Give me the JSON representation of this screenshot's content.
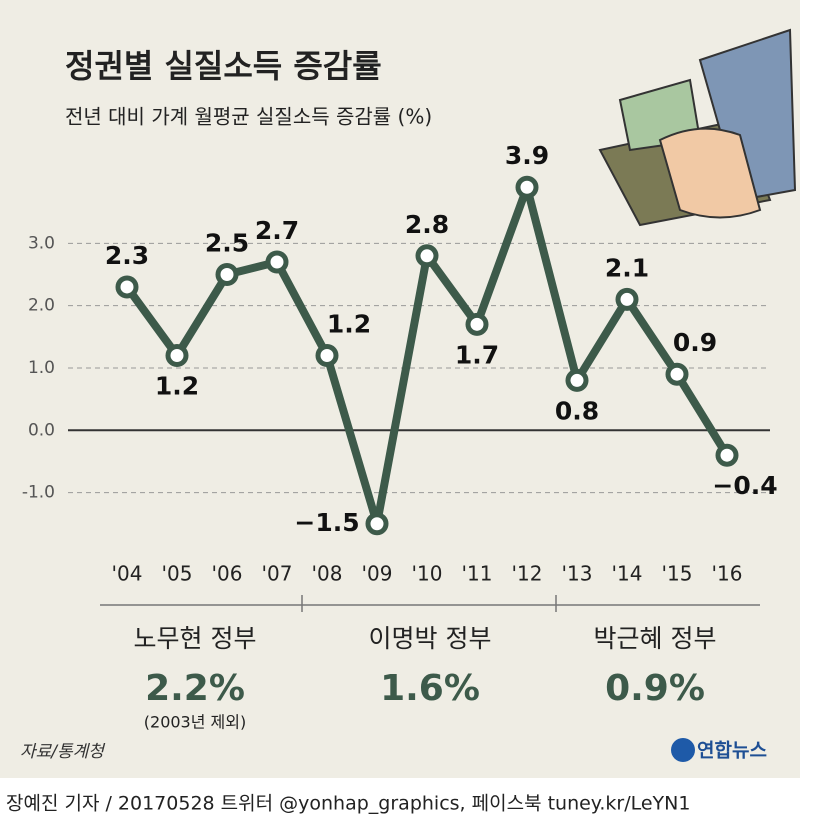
{
  "chart_data": {
    "type": "line",
    "title": "정권별 실질소득 증감률",
    "subtitle": "전년 대비 가계 월평균 실질소득 증감률 (%)",
    "categories": [
      "'04",
      "'05",
      "'06",
      "'07",
      "'08",
      "'09",
      "'10",
      "'11",
      "'12",
      "'13",
      "'14",
      "'15",
      "'16"
    ],
    "values": [
      2.3,
      1.2,
      2.5,
      2.7,
      1.2,
      -1.5,
      2.8,
      1.7,
      3.9,
      0.8,
      2.1,
      0.9,
      -0.4
    ],
    "value_labels": [
      "2.3",
      "1.2",
      "2.5",
      "2.7",
      "1.2",
      "−1.5",
      "2.8",
      "1.7",
      "3.9",
      "0.8",
      "2.1",
      "0.9",
      "−0.4"
    ],
    "color": "#3d5a4a",
    "ylim": [
      -1.6,
      4.0
    ],
    "yticks": [
      {
        "value": 3,
        "label": "3.0"
      },
      {
        "value": 2,
        "label": "2.0"
      },
      {
        "value": 1,
        "label": "1.0"
      },
      {
        "value": 0,
        "label": "0.0"
      },
      {
        "value": -1,
        "label": "-1.0"
      }
    ],
    "grid": true,
    "groups": [
      {
        "name": "노무현 정부",
        "average": "2.2%",
        "note": "(2003년 제외)"
      },
      {
        "name": "이명박 정부",
        "average": "1.6%"
      },
      {
        "name": "박근혜 정부",
        "average": "0.9%"
      }
    ],
    "source": "자료/통계청",
    "logo": "연합뉴스",
    "footer": "장예진 기자 / 20170528 트위터 @yonhap_graphics, 페이스북 tuney.kr/LeYN1"
  }
}
